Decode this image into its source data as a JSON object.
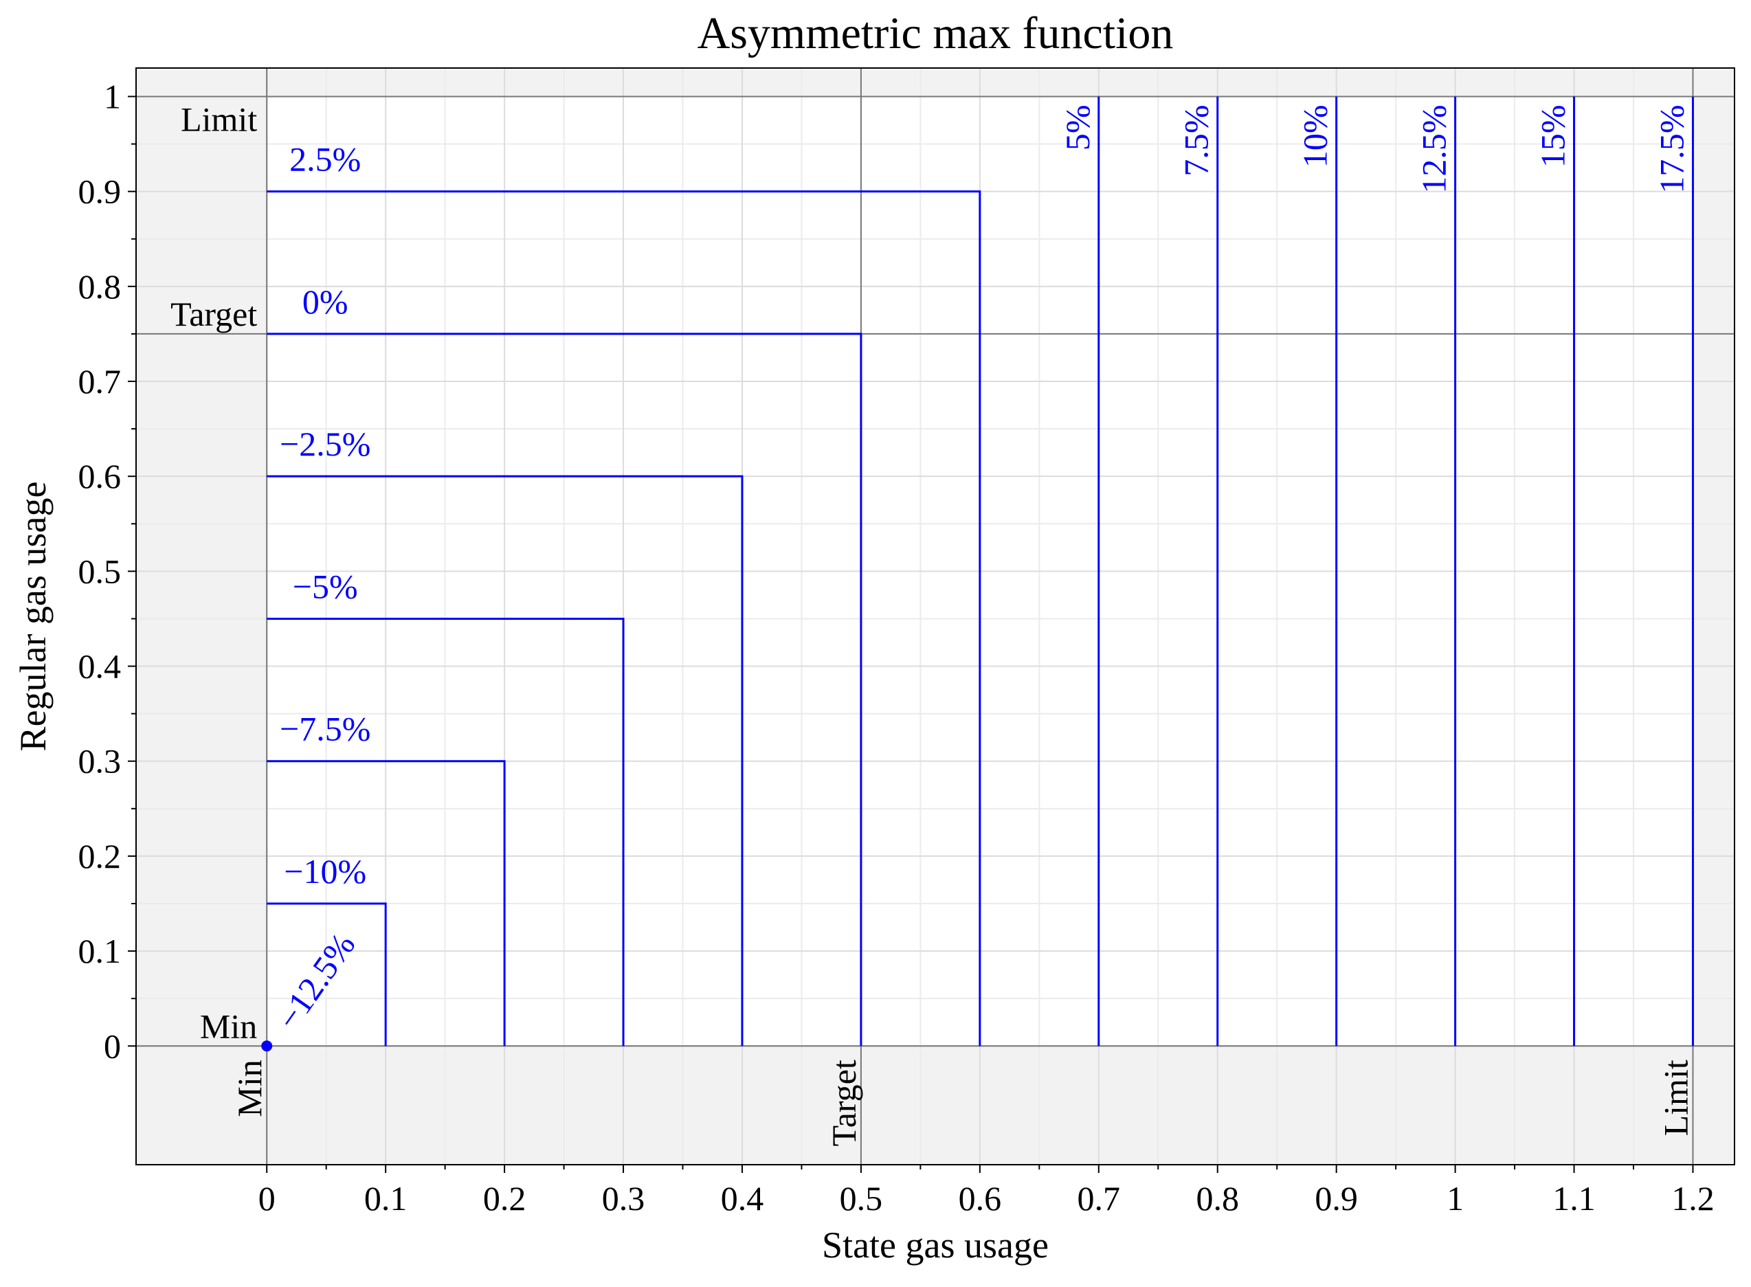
{
  "chart_data": {
    "type": "line",
    "title": "Asymmetric max function",
    "x_label": "State gas usage",
    "y_label": "Regular gas usage",
    "xlim": [
      -0.11,
      1.235
    ],
    "ylim": [
      -0.125,
      1.03
    ],
    "xticks": [
      0,
      0.1,
      0.2,
      0.3,
      0.4,
      0.5,
      0.6,
      0.7,
      0.8,
      0.9,
      1,
      1.1,
      1.2
    ],
    "yticks": [
      0,
      0.1,
      0.2,
      0.3,
      0.4,
      0.5,
      0.6,
      0.7,
      0.8,
      0.9,
      1
    ],
    "grid": true,
    "color": "#0000ff",
    "x_refs": [
      {
        "label": "Min",
        "value": 0
      },
      {
        "label": "Target",
        "value": 0.5
      },
      {
        "label": "Limit",
        "value": 1.2
      }
    ],
    "y_refs": [
      {
        "label": "Min",
        "value": 0
      },
      {
        "label": "Target",
        "value": 0.75
      },
      {
        "label": "Limit",
        "value": 1
      }
    ],
    "series": [
      {
        "name": "−12.5%",
        "x": [
          0
        ],
        "y": [
          0
        ]
      },
      {
        "name": "−10%",
        "x": [
          0,
          0.1,
          0.1
        ],
        "y": [
          0.15,
          0.15,
          0
        ]
      },
      {
        "name": "−7.5%",
        "x": [
          0,
          0.2,
          0.2
        ],
        "y": [
          0.3,
          0.3,
          0
        ]
      },
      {
        "name": "−5%",
        "x": [
          0,
          0.3,
          0.3
        ],
        "y": [
          0.45,
          0.45,
          0
        ]
      },
      {
        "name": "−2.5%",
        "x": [
          0,
          0.4,
          0.4
        ],
        "y": [
          0.6,
          0.6,
          0
        ]
      },
      {
        "name": "0%",
        "x": [
          0,
          0.5,
          0.5
        ],
        "y": [
          0.75,
          0.75,
          0
        ]
      },
      {
        "name": "2.5%",
        "x": [
          0,
          0.6,
          0.6
        ],
        "y": [
          0.9,
          0.9,
          0
        ]
      },
      {
        "name": "5%",
        "x": [
          0.7,
          0.7
        ],
        "y": [
          0,
          1
        ]
      },
      {
        "name": "7.5%",
        "x": [
          0.8,
          0.8
        ],
        "y": [
          0,
          1
        ]
      },
      {
        "name": "10%",
        "x": [
          0.9,
          0.9
        ],
        "y": [
          0,
          1
        ]
      },
      {
        "name": "12.5%",
        "x": [
          1,
          1
        ],
        "y": [
          0,
          1
        ]
      },
      {
        "name": "15%",
        "x": [
          1.1,
          1.1
        ],
        "y": [
          0,
          1
        ]
      },
      {
        "name": "17.5%",
        "x": [
          1.2,
          1.2
        ],
        "y": [
          0,
          1
        ]
      }
    ]
  }
}
